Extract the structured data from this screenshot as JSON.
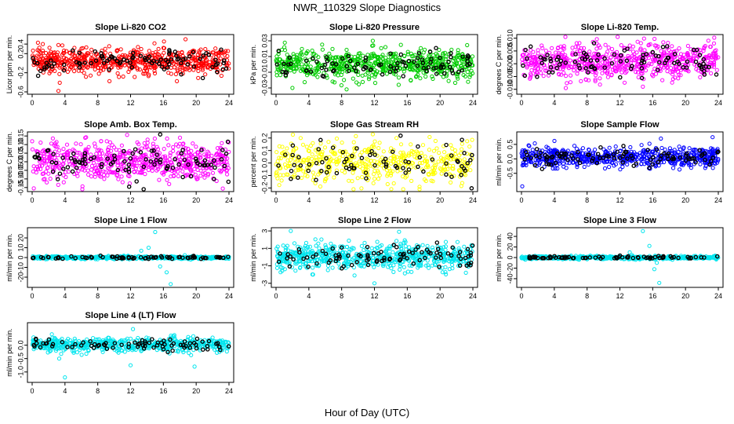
{
  "figure": {
    "title": "NWR_110329  Slope Diagnostics",
    "xlabel": "Hour of Day (UTC)"
  },
  "chart_data": [
    {
      "type": "scatter",
      "title": "Slope Li-820 CO2",
      "ylabel": "Licor ppm per min.",
      "xlim": [
        0,
        24
      ],
      "xticks": [
        0,
        4,
        8,
        12,
        16,
        20,
        24
      ],
      "ylim": [
        -0.6,
        0.55
      ],
      "yticks": [
        -0.6,
        -0.2,
        0.2,
        0.4
      ],
      "ytick_labels": [
        "-0.6",
        "-0.2",
        "0.2",
        "0.4"
      ],
      "center": 0.05,
      "spread": 0.14,
      "outliers": [
        [
          3.2,
          -0.58
        ],
        [
          18.7,
          0.5
        ]
      ],
      "series": [
        {
          "color": "#ff0000",
          "n": 620
        },
        {
          "color": "#000000",
          "n": 95
        }
      ]
    },
    {
      "type": "scatter",
      "title": "Slope Li-820 Pressure",
      "ylabel": "kPa per min.",
      "xlim": [
        0,
        24
      ],
      "xticks": [
        0,
        4,
        8,
        12,
        16,
        20,
        24
      ],
      "ylim": [
        -0.035,
        0.035
      ],
      "yticks": [
        -0.03,
        -0.01,
        0.01,
        0.03
      ],
      "ytick_labels": [
        "-0.03",
        "-0.01",
        "0.01",
        "0.03"
      ],
      "center": 0.0,
      "spread": 0.009,
      "outliers": [
        [
          11.8,
          0.03
        ],
        [
          2.0,
          -0.03
        ]
      ],
      "series": [
        {
          "color": "#00cc00",
          "n": 620
        },
        {
          "color": "#000000",
          "n": 95
        }
      ]
    },
    {
      "type": "scatter",
      "title": "Slope Li-820 Temp.",
      "ylabel": "degrees C per min.",
      "xlim": [
        0,
        24
      ],
      "xticks": [
        0,
        4,
        8,
        12,
        16,
        20,
        24
      ],
      "ylim": [
        -0.011,
        0.0105
      ],
      "yticks": [
        -0.01,
        -0.005,
        0.0,
        0.005,
        0.01
      ],
      "ytick_labels": [
        "-0.010",
        "-0.005",
        "0.000",
        "0.005",
        "0.010"
      ],
      "center": 0.001,
      "spread": 0.0035,
      "outliers": [
        [
          23.5,
          0.0102
        ],
        [
          5.4,
          -0.0095
        ]
      ],
      "series": [
        {
          "color": "#ff00ff",
          "n": 620
        },
        {
          "color": "#000000",
          "n": 95
        }
      ]
    },
    {
      "type": "scatter",
      "title": "Slope Amb. Box Temp.",
      "ylabel": "degrees C per min.",
      "xlim": [
        0,
        24
      ],
      "xticks": [
        0,
        4,
        8,
        12,
        16,
        20,
        24
      ],
      "ylim": [
        -0.16,
        0.16
      ],
      "yticks": [
        -0.15,
        -0.1,
        -0.05,
        0.0,
        0.05,
        0.1,
        0.15
      ],
      "ytick_labels": [
        "-0.15",
        "-0.10",
        "-0.05",
        "0.00",
        "0.05",
        "0.10",
        "0.15"
      ],
      "center": 0.0,
      "spread": 0.055,
      "outliers": [
        [
          0.2,
          -0.155
        ]
      ],
      "series": [
        {
          "color": "#ff00ff",
          "n": 620
        },
        {
          "color": "#000000",
          "n": 95
        }
      ]
    },
    {
      "type": "scatter",
      "title": "Slope Gas Stream RH",
      "ylabel": "percent per min.",
      "xlim": [
        0,
        24
      ],
      "xticks": [
        0,
        4,
        8,
        12,
        16,
        20,
        24
      ],
      "ylim": [
        -0.21,
        0.23
      ],
      "yticks": [
        -0.2,
        -0.1,
        0.0,
        0.1,
        0.2
      ],
      "ytick_labels": [
        "-0.2",
        "-0.1",
        "0.0",
        "0.1",
        "0.2"
      ],
      "center": 0.01,
      "spread": 0.08,
      "outliers": [
        [
          3.0,
          0.2
        ],
        [
          17.5,
          -0.19
        ]
      ],
      "series": [
        {
          "color": "#ffff00",
          "n": 460
        },
        {
          "color": "#000000",
          "n": 75
        }
      ]
    },
    {
      "type": "scatter",
      "title": "Slope Sample Flow",
      "ylabel": "ml/min per min.",
      "xlim": [
        0,
        24
      ],
      "xticks": [
        0,
        4,
        8,
        12,
        16,
        20,
        24
      ],
      "ylim": [
        -1.05,
        0.85
      ],
      "yticks": [
        -0.5,
        0.0,
        0.5
      ],
      "ytick_labels": [
        "-0.5",
        "0.0",
        "0.5"
      ],
      "center": 0.05,
      "spread": 0.16,
      "outliers": [
        [
          0.1,
          -0.95
        ],
        [
          23.3,
          0.75
        ],
        [
          17.0,
          0.7
        ]
      ],
      "series": [
        {
          "color": "#0000ff",
          "n": 620
        },
        {
          "color": "#000000",
          "n": 95
        }
      ]
    },
    {
      "type": "scatter",
      "title": "Slope Line 1 Flow",
      "ylabel": "ml/min per min.",
      "xlim": [
        0,
        24
      ],
      "xticks": [
        0,
        4,
        8,
        12,
        16,
        20,
        24
      ],
      "ylim": [
        -28,
        28
      ],
      "yticks": [
        -20,
        -10,
        0,
        10,
        20
      ],
      "ytick_labels": [
        "-20",
        "-10",
        "0",
        "10",
        "20"
      ],
      "center": 0.0,
      "spread": 0.7,
      "outliers": [
        [
          15.0,
          26
        ],
        [
          16.9,
          -27
        ],
        [
          14.2,
          10
        ],
        [
          16.4,
          -15
        ],
        [
          15.6,
          -9
        ],
        [
          13.3,
          7
        ]
      ],
      "series": [
        {
          "color": "#00e5ee",
          "n": 560
        },
        {
          "color": "#000000",
          "n": 75
        }
      ]
    },
    {
      "type": "scatter",
      "title": "Slope Line 2 Flow",
      "ylabel": "ml/min per min.",
      "xlim": [
        0,
        24
      ],
      "xticks": [
        0,
        4,
        8,
        12,
        16,
        20,
        24
      ],
      "ylim": [
        -3.2,
        3.1
      ],
      "yticks": [
        -3,
        -1,
        1,
        3
      ],
      "ytick_labels": [
        "-3",
        "-1",
        "1",
        "3"
      ],
      "center": 0.05,
      "spread": 0.75,
      "outliers": [
        [
          1.8,
          3.0
        ],
        [
          12.0,
          -3.0
        ],
        [
          15.0,
          2.9
        ]
      ],
      "series": [
        {
          "color": "#00e5ee",
          "n": 620
        },
        {
          "color": "#000000",
          "n": 95
        }
      ]
    },
    {
      "type": "scatter",
      "title": "Slope Line 3 Flow",
      "ylabel": "ml/min per min.",
      "xlim": [
        0,
        24
      ],
      "xticks": [
        0,
        4,
        8,
        12,
        16,
        20,
        24
      ],
      "ylim": [
        -52,
        52
      ],
      "yticks": [
        -40,
        -20,
        0,
        20,
        40
      ],
      "ytick_labels": [
        "-40",
        "-20",
        "0",
        "20",
        "40"
      ],
      "center": 0.0,
      "spread": 1.4,
      "outliers": [
        [
          14.8,
          50
        ],
        [
          16.8,
          -48
        ],
        [
          15.6,
          22
        ],
        [
          16.2,
          -22
        ],
        [
          13.2,
          10
        ],
        [
          16.5,
          -10
        ]
      ],
      "series": [
        {
          "color": "#00e5ee",
          "n": 560
        },
        {
          "color": "#000000",
          "n": 75
        }
      ]
    },
    {
      "type": "scatter",
      "title": "Slope Line 4 (LT) Flow",
      "ylabel": "ml/min per min.",
      "xlim": [
        0,
        24
      ],
      "xticks": [
        0,
        4,
        8,
        12,
        16,
        20,
        24
      ],
      "ylim": [
        -1.3,
        0.75
      ],
      "yticks": [
        -1.0,
        -0.5,
        0.0
      ],
      "ytick_labels": [
        "-1.0",
        "-0.5",
        "0.0"
      ],
      "center": 0.02,
      "spread": 0.13,
      "outliers": [
        [
          4.0,
          -1.2
        ],
        [
          12.3,
          0.6
        ],
        [
          12.0,
          -0.75
        ],
        [
          19.8,
          -0.8
        ],
        [
          3.3,
          -0.5
        ]
      ],
      "series": [
        {
          "color": "#00e5ee",
          "n": 560
        },
        {
          "color": "#000000",
          "n": 80
        }
      ]
    }
  ]
}
